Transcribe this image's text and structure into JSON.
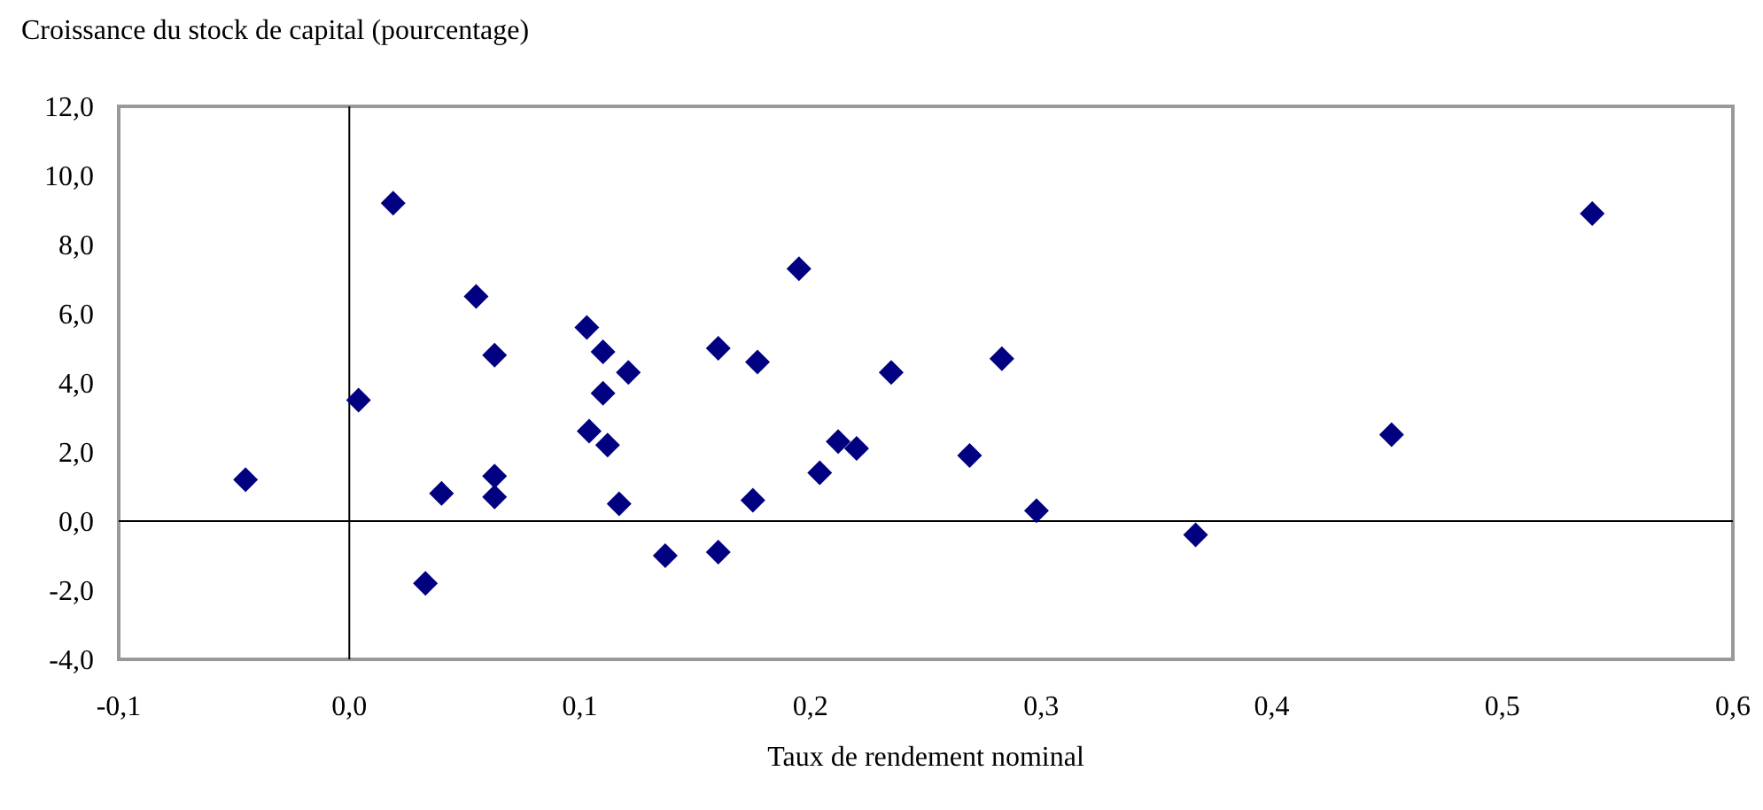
{
  "chart_data": {
    "type": "scatter",
    "title": "Croissance du stock de capital (pourcentage)",
    "xlabel": "Taux de rendement nominal",
    "marker": "diamond",
    "xlim": [
      -0.1,
      0.6
    ],
    "xticks": [
      {
        "value": -0.1,
        "label": "-0,1"
      },
      {
        "value": 0,
        "label": "0,0"
      },
      {
        "value": 0.1,
        "label": "0,1"
      },
      {
        "value": 0.2,
        "label": "0,2"
      },
      {
        "value": 0.3,
        "label": "0,3"
      },
      {
        "value": 0.4,
        "label": "0,4"
      },
      {
        "value": 0.5,
        "label": "0,5"
      },
      {
        "value": 0.6,
        "label": "0,6"
      }
    ],
    "ylim": [
      -4,
      12
    ],
    "yticks": [
      {
        "value": -4,
        "label": "-4,0"
      },
      {
        "value": -2,
        "label": "-2,0"
      },
      {
        "value": 0,
        "label": "0,0"
      },
      {
        "value": 2,
        "label": "2,0"
      },
      {
        "value": 4,
        "label": "4,0"
      },
      {
        "value": 6,
        "label": "6,0"
      },
      {
        "value": 8,
        "label": "8,0"
      },
      {
        "value": 10,
        "label": "10,0"
      },
      {
        "value": 12,
        "label": "12,0"
      }
    ],
    "series": [
      {
        "color": "#000080",
        "x": [
          -0.045,
          0.004,
          0.019,
          0.033,
          0.04,
          0.055,
          0.063,
          0.063,
          0.063,
          0.103,
          0.104,
          0.11,
          0.11,
          0.112,
          0.117,
          0.121,
          0.137,
          0.16,
          0.16,
          0.175,
          0.177,
          0.195,
          0.204,
          0.212,
          0.22,
          0.235,
          0.269,
          0.283,
          0.298,
          0.367,
          0.452,
          0.539
        ],
        "values": [
          1.2,
          3.5,
          9.2,
          -1.8,
          0.8,
          6.5,
          4.8,
          1.3,
          0.7,
          5.6,
          2.6,
          4.9,
          3.7,
          2.2,
          0.5,
          4.3,
          -1.0,
          -0.9,
          5.0,
          0.6,
          4.6,
          7.3,
          1.4,
          2.3,
          2.1,
          4.3,
          1.9,
          4.7,
          0.3,
          -0.4,
          2.5,
          8.9
        ]
      }
    ]
  }
}
